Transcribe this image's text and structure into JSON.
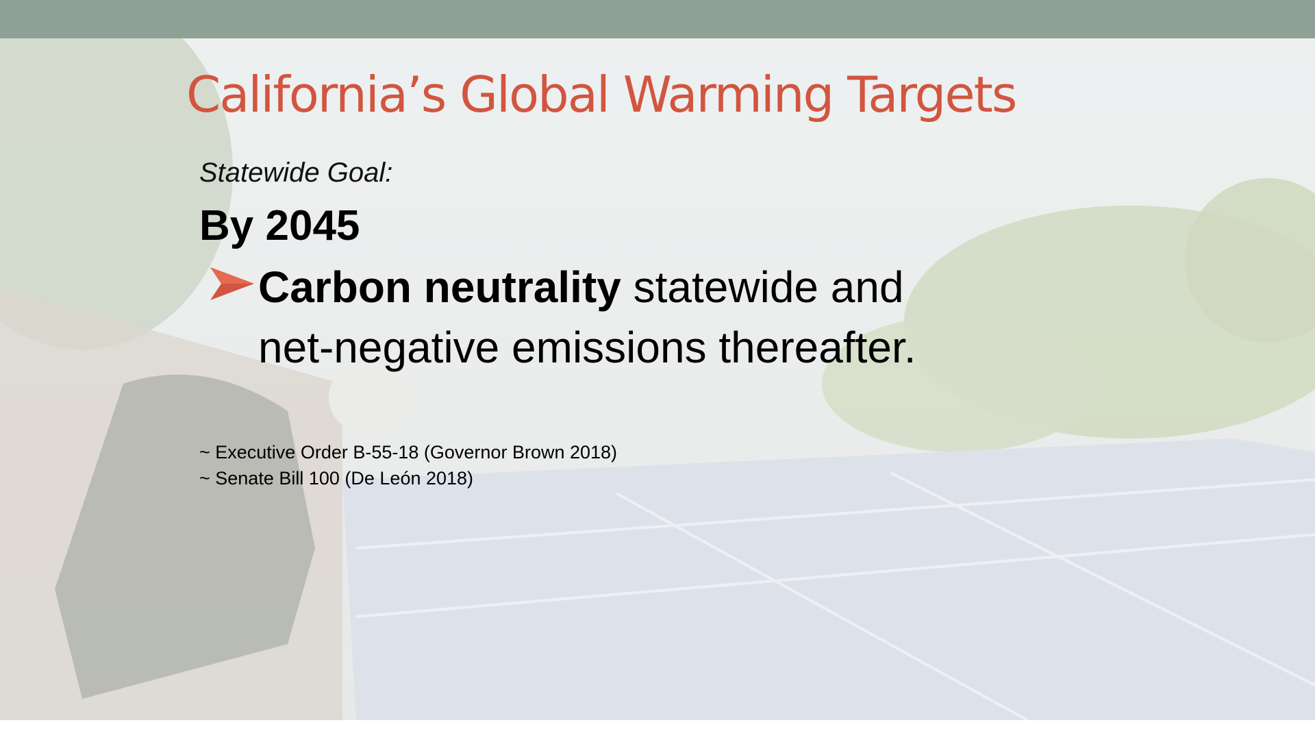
{
  "slide": {
    "title": "California’s Global Warming Targets",
    "subtitle": "Statewide Goal:",
    "heading": "By 2045",
    "bullet": {
      "bold": "Carbon neutrality",
      "line1": " statewide and",
      "line2": "net-negative emissions thereafter."
    },
    "references": [
      "~ Executive Order B-55-18 (Governor Brown 2018)",
      "~ Senate Bill 100 (De León 2018)"
    ]
  }
}
